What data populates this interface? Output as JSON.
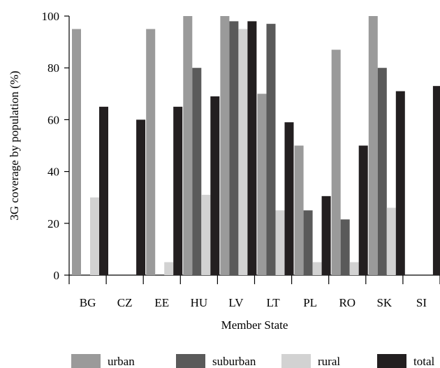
{
  "chart_data": {
    "type": "bar",
    "xlabel": "Member State",
    "ylabel": "3G coverage by population (%)",
    "ylim": [
      0,
      100
    ],
    "yticks": [
      0,
      20,
      40,
      60,
      80,
      100
    ],
    "categories": [
      "BG",
      "CZ",
      "EE",
      "HU",
      "LV",
      "LT",
      "PL",
      "RO",
      "SK",
      "SI"
    ],
    "series": [
      {
        "name": "urban",
        "color": "#9a9a9a",
        "values": [
          95,
          0,
          95,
          100,
          100,
          70,
          50,
          87,
          100,
          0
        ]
      },
      {
        "name": "suburban",
        "color": "#5a5a5a",
        "values": [
          0,
          0,
          0,
          80,
          98,
          97,
          25,
          21.5,
          80,
          0
        ]
      },
      {
        "name": "rural",
        "color": "#d2d2d2",
        "values": [
          30,
          0,
          5,
          31,
          95,
          25,
          5,
          5,
          26,
          0
        ]
      },
      {
        "name": "total",
        "color": "#231f20",
        "values": [
          65,
          60,
          65,
          69,
          98,
          59,
          30.5,
          50,
          71,
          73
        ]
      }
    ],
    "grid": false,
    "legend_position": "bottom"
  }
}
